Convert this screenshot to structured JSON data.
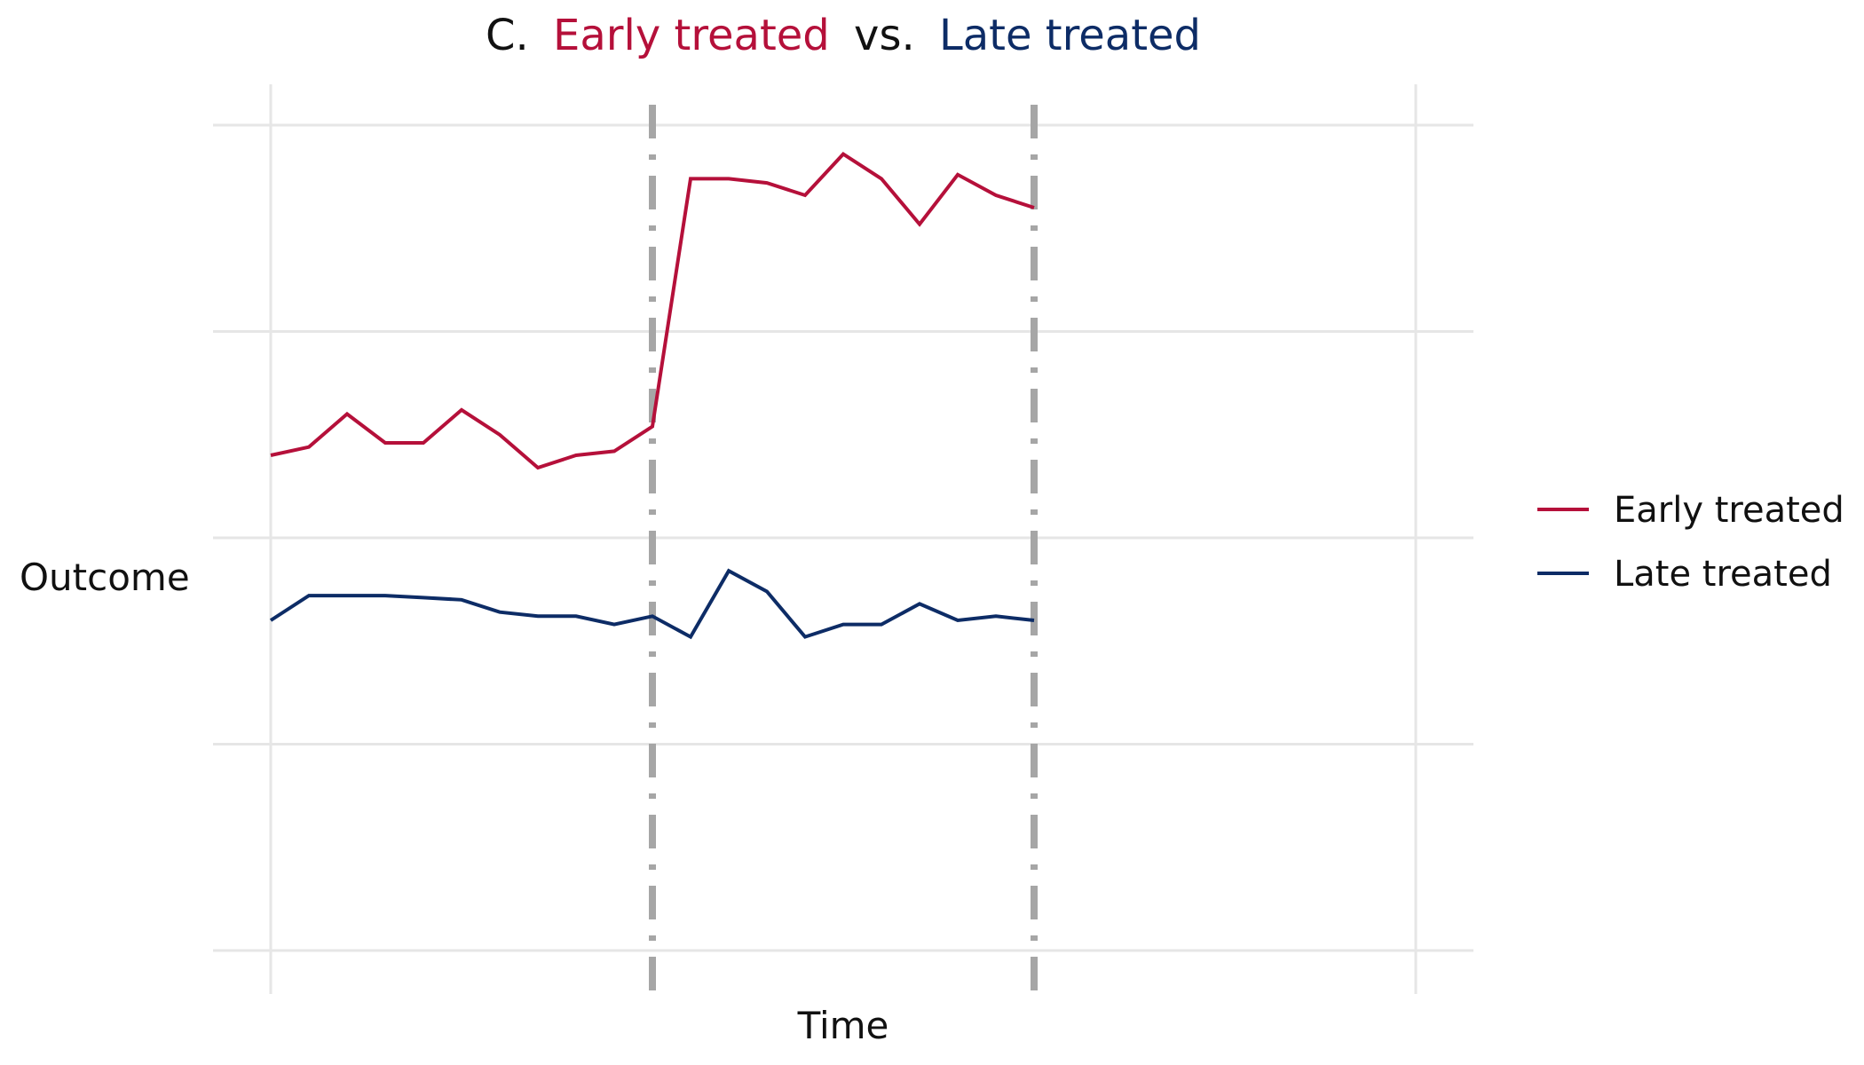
{
  "colors": {
    "early": "#B5103A",
    "late": "#0D2C66",
    "title_plain": "#111111",
    "grid": "#E6E6E6",
    "vline": "#A6A6A6"
  },
  "chart_data": {
    "type": "line",
    "title": {
      "prefix": "C.",
      "early": "Early treated",
      "middle": "vs.",
      "late": "Late treated"
    },
    "xlabel": "Time",
    "ylabel": "Outcome",
    "xlim": [
      0,
      30
    ],
    "ylim": [
      0,
      2
    ],
    "grid": true,
    "legend": "right",
    "x": [
      0,
      1,
      2,
      3,
      4,
      5,
      6,
      7,
      8,
      9,
      10,
      11,
      12,
      13,
      14,
      15,
      16,
      17,
      18,
      19,
      20
    ],
    "series": [
      {
        "name": "Early treated",
        "color_key": "early",
        "values": [
          1.2,
          1.22,
          1.3,
          1.23,
          1.23,
          1.31,
          1.25,
          1.17,
          1.2,
          1.21,
          1.27,
          1.87,
          1.87,
          1.86,
          1.83,
          1.93,
          1.87,
          1.76,
          1.88,
          1.83,
          1.8
        ]
      },
      {
        "name": "Late treated",
        "color_key": "late",
        "values": [
          0.8,
          0.86,
          0.86,
          0.86,
          0.855,
          0.85,
          0.82,
          0.81,
          0.81,
          0.79,
          0.81,
          0.76,
          0.92,
          0.87,
          0.76,
          0.79,
          0.79,
          0.84,
          0.8,
          0.81,
          0.8
        ]
      }
    ],
    "treatment_lines": [
      10,
      20
    ]
  }
}
